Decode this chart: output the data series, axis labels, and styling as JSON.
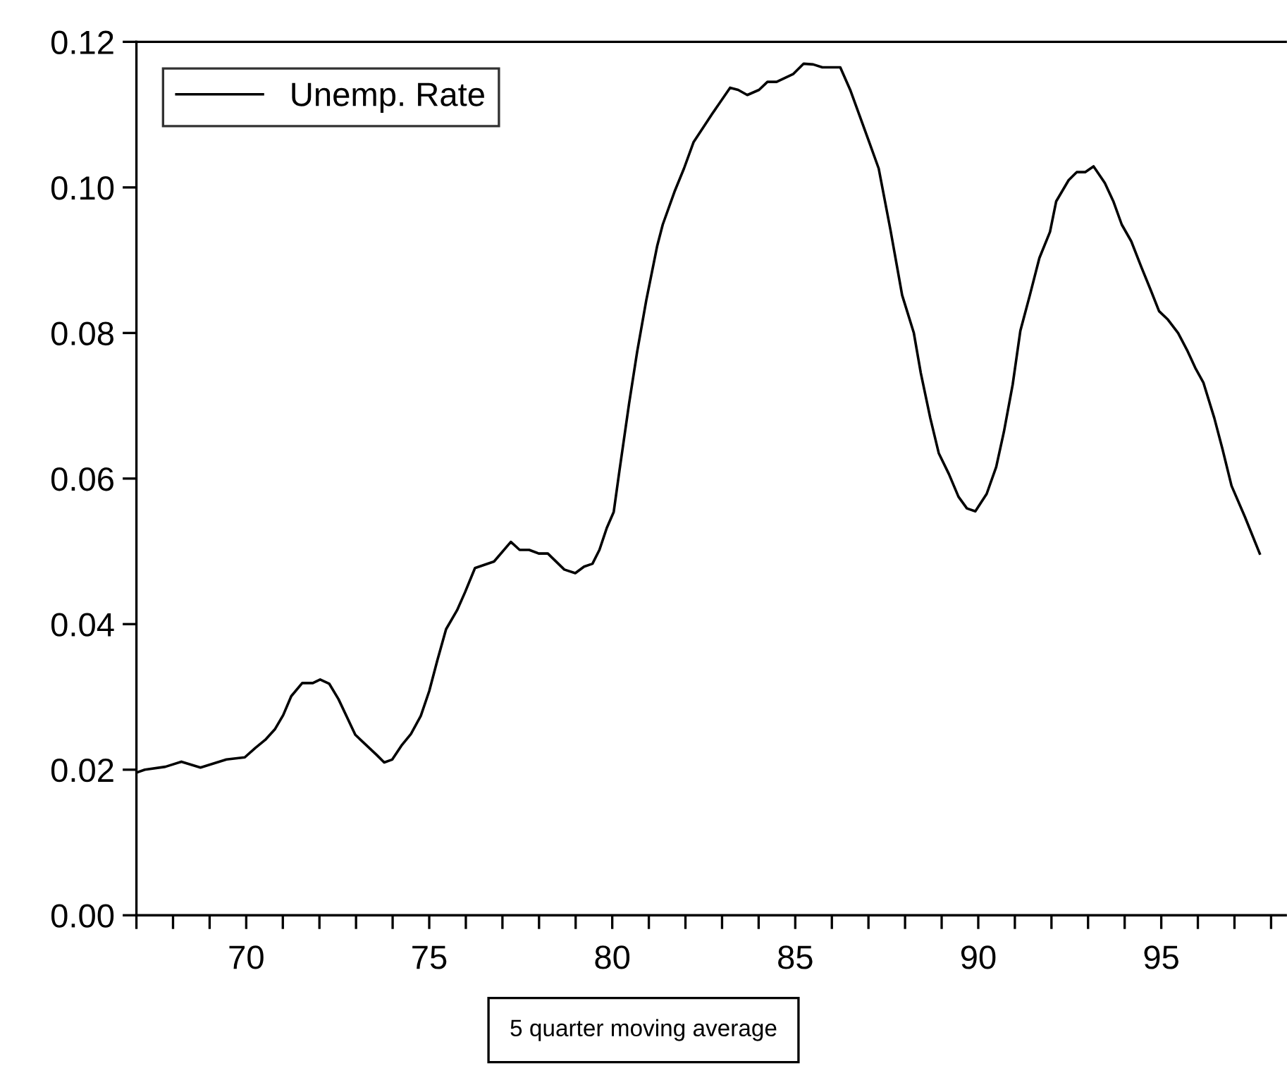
{
  "chart_data": {
    "type": "line",
    "x": [
      67.0,
      67.23,
      67.79,
      68.23,
      68.75,
      69.46,
      69.96,
      70.25,
      70.52,
      70.79,
      71.01,
      71.23,
      71.53,
      71.82,
      72.02,
      72.27,
      72.52,
      72.98,
      73.57,
      73.77,
      73.99,
      74.24,
      74.5,
      74.77,
      75.0,
      75.22,
      75.46,
      75.76,
      75.98,
      76.25,
      76.77,
      77.23,
      77.47,
      77.73,
      77.99,
      78.24,
      78.69,
      78.99,
      79.23,
      79.46,
      79.65,
      79.85,
      80.04,
      80.2,
      80.46,
      80.68,
      80.93,
      81.23,
      81.38,
      81.7,
      81.96,
      82.22,
      82.73,
      83.22,
      83.44,
      83.69,
      84.01,
      84.24,
      84.49,
      84.95,
      85.23,
      85.49,
      85.74,
      86.23,
      86.51,
      87.0,
      87.28,
      87.6,
      87.92,
      88.24,
      88.43,
      88.69,
      88.92,
      89.2,
      89.46,
      89.69,
      89.92,
      90.23,
      90.49,
      90.7,
      90.94,
      91.15,
      91.41,
      91.67,
      91.96,
      92.13,
      92.47,
      92.69,
      92.92,
      93.15,
      93.46,
      93.69,
      93.92,
      94.18,
      94.46,
      94.72,
      94.94,
      95.17,
      95.46,
      95.72,
      95.94,
      96.15,
      96.45,
      96.67,
      96.92,
      97.28,
      97.69
    ],
    "series": [
      {
        "name": "Unemp. Rate",
        "color": "#000000",
        "values": [
          0.0196,
          0.02,
          0.0204,
          0.0211,
          0.0203,
          0.0214,
          0.0217,
          0.023,
          0.0241,
          0.0256,
          0.0275,
          0.0301,
          0.0319,
          0.0319,
          0.0324,
          0.0318,
          0.0297,
          0.0248,
          0.022,
          0.021,
          0.0214,
          0.0233,
          0.0249,
          0.0274,
          0.0308,
          0.035,
          0.0393,
          0.0419,
          0.0444,
          0.0477,
          0.0486,
          0.0513,
          0.0502,
          0.0502,
          0.0497,
          0.0497,
          0.0475,
          0.047,
          0.0479,
          0.0483,
          0.0502,
          0.0532,
          0.0554,
          0.0612,
          0.0703,
          0.0774,
          0.0845,
          0.092,
          0.0949,
          0.0994,
          0.1026,
          0.1062,
          0.1101,
          0.1137,
          0.1134,
          0.1127,
          0.1134,
          0.1145,
          0.1145,
          0.1156,
          0.117,
          0.1169,
          0.1165,
          0.1165,
          0.1133,
          0.1065,
          0.1026,
          0.0942,
          0.0852,
          0.08,
          0.0745,
          0.0683,
          0.0635,
          0.0606,
          0.0575,
          0.0559,
          0.0555,
          0.0579,
          0.0616,
          0.0664,
          0.0729,
          0.0803,
          0.0852,
          0.0903,
          0.0939,
          0.0981,
          0.101,
          0.1021,
          0.1021,
          0.1029,
          0.1006,
          0.0981,
          0.0949,
          0.0926,
          0.089,
          0.0858,
          0.083,
          0.0819,
          0.08,
          0.0775,
          0.0751,
          0.0732,
          0.0683,
          0.0641,
          0.059,
          0.0548,
          0.0497
        ]
      }
    ],
    "xlim": [
      67,
      98.4
    ],
    "xticks": [
      {
        "value": 67,
        "label": null
      },
      {
        "value": 68,
        "label": null
      },
      {
        "value": 69,
        "label": null
      },
      70,
      {
        "value": 71,
        "label": null
      },
      {
        "value": 72,
        "label": null
      },
      {
        "value": 73,
        "label": null
      },
      {
        "value": 74,
        "label": null
      },
      75,
      {
        "value": 76,
        "label": null
      },
      {
        "value": 77,
        "label": null
      },
      {
        "value": 78,
        "label": null
      },
      {
        "value": 79,
        "label": null
      },
      80,
      {
        "value": 81,
        "label": null
      },
      {
        "value": 82,
        "label": null
      },
      {
        "value": 83,
        "label": null
      },
      {
        "value": 84,
        "label": null
      },
      85,
      {
        "value": 86,
        "label": null
      },
      {
        "value": 87,
        "label": null
      },
      {
        "value": 88,
        "label": null
      },
      {
        "value": 89,
        "label": null
      },
      90,
      {
        "value": 91,
        "label": null
      },
      {
        "value": 92,
        "label": null
      },
      {
        "value": 93,
        "label": null
      },
      {
        "value": 94,
        "label": null
      },
      95,
      {
        "value": 96,
        "label": null
      },
      {
        "value": 97,
        "label": null
      },
      {
        "value": 98,
        "label": null
      }
    ],
    "ylim": [
      0,
      0.12
    ],
    "yticks": [
      {
        "value": 0,
        "label": "0.00"
      },
      {
        "value": 0.02,
        "label": "0.02"
      },
      {
        "value": 0.04,
        "label": "0.04"
      },
      {
        "value": 0.06,
        "label": "0.06"
      },
      {
        "value": 0.08,
        "label": "0.08"
      },
      {
        "value": 0.1,
        "label": "0.10"
      },
      {
        "value": 0.12,
        "label": "0.12"
      }
    ],
    "grid": false,
    "legend": "top left",
    "marker": "none",
    "line_style": "solid",
    "annotations": [
      "5 quarter moving average"
    ]
  }
}
